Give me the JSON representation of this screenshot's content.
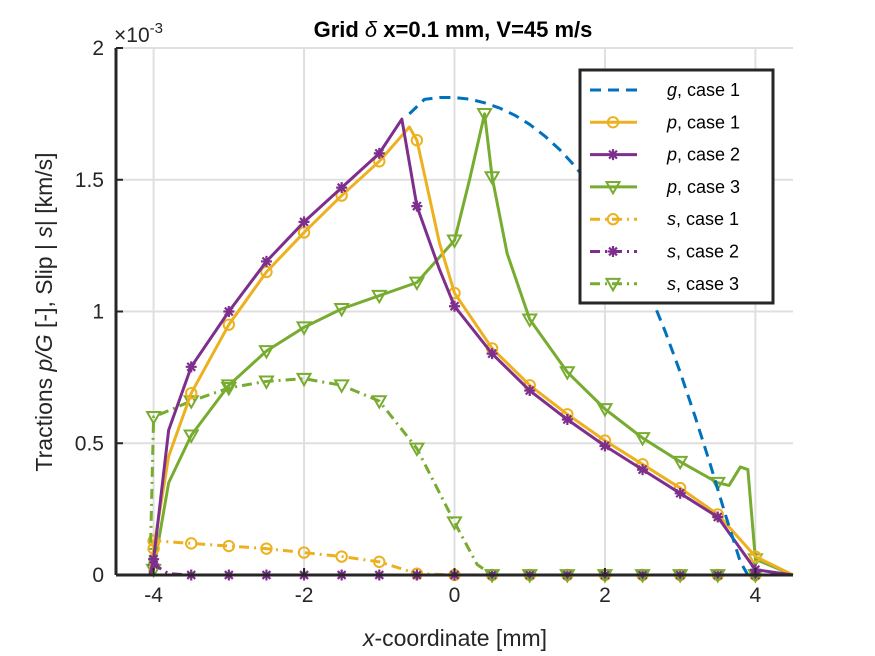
{
  "chart_data": {
    "type": "line",
    "title_parts": {
      "prefix": "Grid ",
      "symbol": "δ",
      "suffix": " x=0.1 mm, V=45 m/s"
    },
    "xlabel_parts": {
      "var": "x",
      "rest": "-coordinate [mm]"
    },
    "ylabel_parts": {
      "a": "Tractions  ",
      "b": "p/G",
      "c": " [-], Slip | ",
      "d": "s",
      "e": "| [km/s]"
    },
    "y_multiplier": {
      "base": "×10",
      "exp": "-3"
    },
    "xlim": [
      -4.5,
      4.5
    ],
    "ylim": [
      0,
      2
    ],
    "xticks": [
      -4,
      -2,
      0,
      2,
      4
    ],
    "xtick_labels": [
      "-4",
      "-2",
      "0",
      "2",
      "4"
    ],
    "yticks": [
      0,
      0.5,
      1,
      1.5,
      2
    ],
    "ytick_labels": [
      "0",
      "0.5",
      "1",
      "1.5",
      "2"
    ],
    "grid": true,
    "legend_position": "top-right",
    "series": [
      {
        "var": "g",
        "label_suffix": ", case 1",
        "color": "#0072BD",
        "dash": "dashed",
        "marker": "none",
        "x": [
          -0.6,
          -0.4,
          -0.2,
          0,
          0.2,
          0.4,
          0.6,
          0.8,
          1.0,
          1.2,
          1.4,
          1.6,
          1.8,
          2.0,
          2.2,
          2.4,
          2.6,
          2.8,
          3.0,
          3.2,
          3.4,
          3.6,
          3.8,
          3.9,
          4.0
        ],
        "y": [
          1.75,
          1.805,
          1.812,
          1.812,
          1.806,
          1.792,
          1.772,
          1.745,
          1.71,
          1.666,
          1.614,
          1.552,
          1.48,
          1.396,
          1.3,
          1.19,
          1.065,
          0.925,
          0.77,
          0.6,
          0.42,
          0.23,
          0.05,
          0,
          0
        ]
      },
      {
        "var": "p",
        "label_suffix": ", case 1",
        "color": "#EDB120",
        "dash": "solid",
        "marker": "circle",
        "x": [
          -4.5,
          -4.05,
          -4.0,
          -3.8,
          -3.5,
          -3.0,
          -2.5,
          -2.0,
          -1.5,
          -1.0,
          -0.6,
          -0.5,
          -0.2,
          0,
          0.5,
          1.0,
          1.5,
          2.0,
          2.5,
          3.0,
          3.5,
          4.0,
          4.5
        ],
        "y": [
          0,
          0,
          0.1,
          0.45,
          0.69,
          0.95,
          1.15,
          1.3,
          1.44,
          1.57,
          1.7,
          1.65,
          1.26,
          1.07,
          0.86,
          0.72,
          0.61,
          0.51,
          0.42,
          0.33,
          0.23,
          0.07,
          0
        ],
        "marker_x": [
          -4.0,
          -3.5,
          -3.0,
          -2.5,
          -2.0,
          -1.5,
          -1.0,
          -0.5,
          0,
          0.5,
          1.0,
          1.5,
          2.0,
          2.5,
          3.0,
          3.5,
          4.0
        ],
        "marker_y": [
          0.1,
          0.69,
          0.95,
          1.15,
          1.3,
          1.44,
          1.57,
          1.65,
          1.07,
          0.86,
          0.72,
          0.61,
          0.51,
          0.42,
          0.33,
          0.23,
          0.07
        ]
      },
      {
        "var": "p",
        "label_suffix": ", case 2",
        "color": "#7E2F8E",
        "dash": "solid",
        "marker": "asterisk",
        "x": [
          -4.5,
          -4.05,
          -4.0,
          -3.8,
          -3.5,
          -3.0,
          -2.5,
          -2.0,
          -1.5,
          -1.0,
          -0.7,
          -0.5,
          -0.2,
          0,
          0.5,
          1.0,
          1.5,
          2.0,
          2.5,
          3.0,
          3.5,
          4.0,
          4.5
        ],
        "y": [
          0,
          0,
          0.06,
          0.55,
          0.79,
          1.0,
          1.19,
          1.34,
          1.47,
          1.6,
          1.73,
          1.4,
          1.16,
          1.02,
          0.84,
          0.7,
          0.59,
          0.49,
          0.4,
          0.31,
          0.22,
          0.02,
          0
        ],
        "marker_x": [
          -4.0,
          -3.5,
          -3.0,
          -2.5,
          -2.0,
          -1.5,
          -1.0,
          -0.5,
          0,
          0.5,
          1.0,
          1.5,
          2.0,
          2.5,
          3.0,
          3.5,
          4.0
        ],
        "marker_y": [
          0.06,
          0.79,
          1.0,
          1.19,
          1.34,
          1.47,
          1.6,
          1.4,
          1.02,
          0.84,
          0.7,
          0.59,
          0.49,
          0.4,
          0.31,
          0.22,
          0.02
        ]
      },
      {
        "var": "p",
        "label_suffix": ", case 3",
        "color": "#77AC30",
        "dash": "solid",
        "marker": "triangle-down",
        "x": [
          -4.5,
          -4.05,
          -4.0,
          -3.8,
          -3.5,
          -3.0,
          -2.5,
          -2.0,
          -1.5,
          -1.0,
          -0.5,
          0,
          0.2,
          0.4,
          0.5,
          0.7,
          1.0,
          1.5,
          2.0,
          2.5,
          3.0,
          3.5,
          3.65,
          3.8,
          3.9,
          4.0,
          4.5
        ],
        "y": [
          0,
          0,
          0.02,
          0.35,
          0.53,
          0.72,
          0.85,
          0.94,
          1.01,
          1.06,
          1.11,
          1.27,
          1.5,
          1.75,
          1.51,
          1.22,
          0.97,
          0.77,
          0.63,
          0.52,
          0.43,
          0.35,
          0.34,
          0.41,
          0.4,
          0.06,
          0
        ],
        "marker_x": [
          -4.0,
          -3.5,
          -3.0,
          -2.5,
          -2.0,
          -1.5,
          -1.0,
          -0.5,
          0,
          0.4,
          0.5,
          1.0,
          1.5,
          2.0,
          2.5,
          3.0,
          3.5,
          4.0
        ],
        "marker_y": [
          0.02,
          0.53,
          0.72,
          0.85,
          0.94,
          1.01,
          1.06,
          1.11,
          1.27,
          1.75,
          1.51,
          0.97,
          0.77,
          0.63,
          0.52,
          0.43,
          0.35,
          0.06
        ]
      },
      {
        "var": "s",
        "label_suffix": ", case 1",
        "color": "#EDB120",
        "dash": "dashdot",
        "marker": "circle",
        "x": [
          -4.5,
          -4.05,
          -4.0,
          -3.5,
          -3.0,
          -2.5,
          -2.0,
          -1.5,
          -1.0,
          -0.5,
          0,
          0.5,
          1.0,
          1.5,
          2.0,
          2.5,
          3.0,
          3.5,
          4.0,
          4.5
        ],
        "y": [
          0,
          0,
          0.13,
          0.12,
          0.11,
          0.1,
          0.085,
          0.07,
          0.05,
          0.005,
          0,
          0,
          0,
          0,
          0,
          0,
          0,
          0,
          0,
          0
        ],
        "marker_x": [
          -4.0,
          -3.5,
          -3.0,
          -2.5,
          -2.0,
          -1.5,
          -1.0,
          -0.5,
          0,
          0.5,
          1.0,
          1.5,
          2.0,
          2.5,
          3.0,
          3.5,
          4.0
        ],
        "marker_y": [
          0.13,
          0.12,
          0.11,
          0.1,
          0.085,
          0.07,
          0.05,
          0.005,
          0,
          0,
          0,
          0,
          0,
          0,
          0,
          0,
          0
        ]
      },
      {
        "var": "s",
        "label_suffix": ", case 2",
        "color": "#7E2F8E",
        "dash": "dashdot",
        "marker": "asterisk",
        "x": [
          -4.5,
          -4.05,
          -4.0,
          -3.8,
          -3.5,
          -3.0,
          -2.5,
          -2.0,
          -1.5,
          -1.0,
          -0.5,
          0,
          0.5,
          1.0,
          1.5,
          2.0,
          2.5,
          3.0,
          3.5,
          4.0,
          4.5
        ],
        "y": [
          0,
          0,
          0.04,
          0.005,
          0,
          0,
          0,
          0,
          0,
          0,
          0,
          0,
          0,
          0,
          0,
          0,
          0,
          0,
          0,
          0,
          0
        ],
        "marker_x": [
          -4.0,
          -3.5,
          -3.0,
          -2.5,
          -2.0,
          -1.5,
          -1.0,
          -0.5,
          0,
          0.5,
          1.0,
          1.5,
          2.0,
          2.5,
          3.0,
          3.5,
          4.0
        ],
        "marker_y": [
          0.04,
          0,
          0,
          0,
          0,
          0,
          0,
          0,
          0,
          0,
          0,
          0,
          0,
          0,
          0,
          0,
          0
        ]
      },
      {
        "var": "s",
        "label_suffix": ", case 3",
        "color": "#77AC30",
        "dash": "dashdot",
        "marker": "triangle-down",
        "x": [
          -4.5,
          -4.05,
          -4.0,
          -3.5,
          -3.0,
          -2.5,
          -2.0,
          -1.5,
          -1.0,
          -0.5,
          0,
          0.3,
          0.5,
          1.0,
          1.5,
          2.0,
          2.5,
          3.0,
          3.5,
          4.0,
          4.5
        ],
        "y": [
          0,
          0,
          0.6,
          0.66,
          0.71,
          0.735,
          0.745,
          0.72,
          0.66,
          0.48,
          0.2,
          0.04,
          0,
          0,
          0,
          0,
          0,
          0,
          0,
          0,
          0
        ],
        "marker_x": [
          -4.0,
          -3.5,
          -3.0,
          -2.5,
          -2.0,
          -1.5,
          -1.0,
          -0.5,
          0,
          0.5,
          1.0,
          1.5,
          2.0,
          2.5,
          3.0,
          3.5,
          4.0
        ],
        "marker_y": [
          0.6,
          0.66,
          0.71,
          0.735,
          0.745,
          0.72,
          0.66,
          0.48,
          0.2,
          0,
          0,
          0,
          0,
          0,
          0,
          0,
          0
        ]
      }
    ]
  }
}
